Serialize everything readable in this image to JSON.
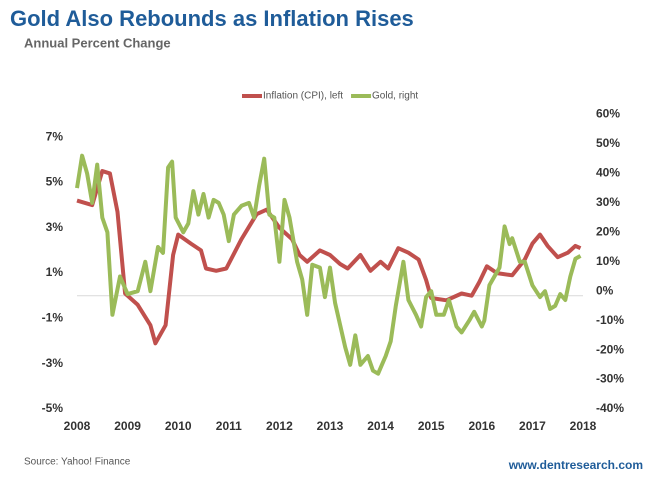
{
  "chart_data": {
    "type": "line",
    "title": "Gold Also Rebounds as Inflation Rises",
    "subtitle": "Annual Percent Change",
    "source": "Source: Yahoo! Finance",
    "brand": "www.dentresearch.com",
    "xlim": [
      2008,
      2018
    ],
    "xticks": [
      2008,
      2009,
      2010,
      2011,
      2012,
      2013,
      2014,
      2015,
      2016,
      2017,
      2018
    ],
    "ylim": [
      -5,
      8
    ],
    "yticks": [
      {
        "value": 7,
        "label": "7%"
      },
      {
        "value": 5,
        "label": "5%"
      },
      {
        "value": 3,
        "label": "3%"
      },
      {
        "value": 1,
        "label": "1%"
      },
      {
        "value": -1,
        "label": "-1%"
      },
      {
        "value": -3,
        "label": "-3%"
      },
      {
        "value": -5,
        "label": "-5%"
      }
    ],
    "y2lim": [
      -40,
      60
    ],
    "y2ticks": [
      {
        "value": 60,
        "label": "60%"
      },
      {
        "value": 50,
        "label": "50%"
      },
      {
        "value": 40,
        "label": "40%"
      },
      {
        "value": 30,
        "label": "30%"
      },
      {
        "value": 20,
        "label": "20%"
      },
      {
        "value": 10,
        "label": "10%"
      },
      {
        "value": 0,
        "label": "0%"
      },
      {
        "value": -10,
        "label": "-10%"
      },
      {
        "value": -20,
        "label": "-20%"
      },
      {
        "value": -30,
        "label": "-30%"
      },
      {
        "value": -40,
        "label": "-40%"
      }
    ],
    "legend": "top",
    "series": [
      {
        "name": "Inflation (CPI), left",
        "color": "#c0504d",
        "axis": "y",
        "x": [
          2008,
          2008.3,
          2008.5,
          2008.65,
          2008.8,
          2008.95,
          2009.2,
          2009.45,
          2009.55,
          2009.75,
          2009.9,
          2010,
          2010.25,
          2010.45,
          2010.55,
          2010.75,
          2010.95,
          2011.25,
          2011.55,
          2011.75,
          2012,
          2012.25,
          2012.4,
          2012.55,
          2012.8,
          2013,
          2013.2,
          2013.35,
          2013.6,
          2013.8,
          2014,
          2014.15,
          2014.35,
          2014.55,
          2014.75,
          2014.9,
          2015,
          2015.3,
          2015.6,
          2015.8,
          2015.95,
          2016.1,
          2016.3,
          2016.6,
          2016.85,
          2017,
          2017.15,
          2017.3,
          2017.5,
          2017.7,
          2017.85,
          2017.95
        ],
        "values": [
          4.2,
          4.0,
          5.5,
          5.4,
          3.7,
          0.1,
          -0.4,
          -1.3,
          -2.1,
          -1.3,
          1.8,
          2.7,
          2.3,
          2.0,
          1.2,
          1.1,
          1.2,
          2.5,
          3.6,
          3.8,
          3.0,
          2.5,
          1.8,
          1.5,
          2.0,
          1.8,
          1.4,
          1.2,
          1.8,
          1.1,
          1.5,
          1.2,
          2.1,
          1.9,
          1.6,
          0.7,
          -0.1,
          -0.2,
          0.1,
          0.0,
          0.6,
          1.3,
          1.0,
          0.9,
          1.6,
          2.3,
          2.7,
          2.2,
          1.7,
          1.9,
          2.2,
          2.1
        ]
      },
      {
        "name": "Gold, right",
        "color": "#9bbb59",
        "axis": "y2",
        "x": [
          2008,
          2008.1,
          2008.2,
          2008.3,
          2008.4,
          2008.5,
          2008.6,
          2008.7,
          2008.85,
          2009,
          2009.2,
          2009.35,
          2009.45,
          2009.6,
          2009.7,
          2009.8,
          2009.88,
          2009.95,
          2010.1,
          2010.2,
          2010.3,
          2010.4,
          2010.5,
          2010.6,
          2010.7,
          2010.8,
          2010.9,
          2011,
          2011.1,
          2011.25,
          2011.4,
          2011.5,
          2011.6,
          2011.7,
          2011.8,
          2011.9,
          2012,
          2012.1,
          2012.2,
          2012.35,
          2012.45,
          2012.55,
          2012.65,
          2012.8,
          2012.9,
          2013,
          2013.1,
          2013.3,
          2013.4,
          2013.5,
          2013.6,
          2013.75,
          2013.85,
          2013.95,
          2014.1,
          2014.2,
          2014.3,
          2014.45,
          2014.55,
          2014.7,
          2014.8,
          2014.9,
          2015,
          2015.1,
          2015.25,
          2015.35,
          2015.5,
          2015.6,
          2015.75,
          2015.85,
          2016,
          2016.05,
          2016.15,
          2016.25,
          2016.35,
          2016.45,
          2016.55,
          2016.6,
          2016.75,
          2016.85,
          2017,
          2017.15,
          2017.25,
          2017.35,
          2017.45,
          2017.55,
          2017.65,
          2017.75,
          2017.85,
          2017.95
        ],
        "values": [
          35,
          46,
          40,
          30,
          43,
          25,
          20,
          -8,
          5,
          -1,
          0,
          10,
          0,
          15,
          13,
          42,
          44,
          25,
          20,
          23,
          34,
          26,
          33,
          25,
          31,
          30,
          26,
          17,
          26,
          29,
          30,
          25,
          36,
          45,
          26,
          25,
          10,
          31,
          25,
          10,
          4,
          -8,
          9,
          8,
          -2,
          8,
          -4,
          -19,
          -25,
          -15,
          -25,
          -22,
          -27,
          -28,
          -22,
          -17,
          -5,
          10,
          -3,
          -8,
          -12,
          -2,
          0,
          -8,
          -8,
          -3,
          -12,
          -14,
          -10,
          -7,
          -12,
          -10,
          2,
          5,
          8,
          22,
          16,
          18,
          10,
          10,
          2,
          -2,
          0,
          -6,
          -5,
          -1,
          -3,
          5,
          11,
          12
        ]
      }
    ]
  }
}
